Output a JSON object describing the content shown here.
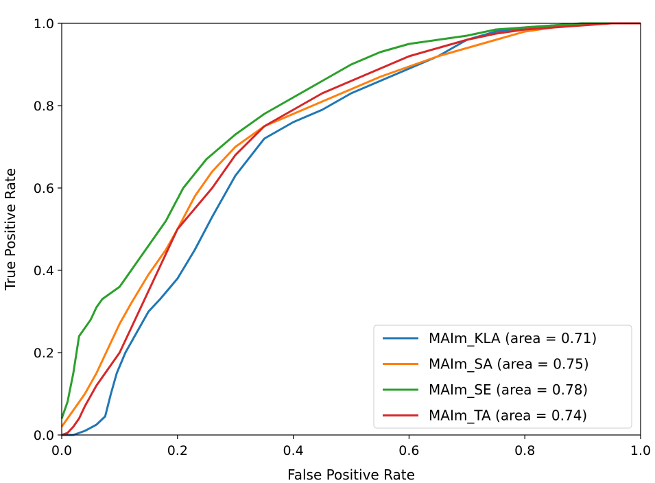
{
  "chart_data": {
    "type": "line",
    "title": "",
    "xlabel": "False Positive Rate",
    "ylabel": "True Positive Rate",
    "xlim": [
      0.0,
      1.0
    ],
    "ylim": [
      0.0,
      1.0
    ],
    "xticks": [
      "0.0",
      "0.2",
      "0.4",
      "0.6",
      "0.8",
      "1.0"
    ],
    "yticks": [
      "0.0",
      "0.2",
      "0.4",
      "0.6",
      "0.8",
      "1.0"
    ],
    "grid": false,
    "legend_position": "lower-right",
    "series": [
      {
        "name": "MAIm_KLA (area = 0.71)",
        "color": "#1f77b4",
        "x": [
          0.0,
          0.02,
          0.04,
          0.06,
          0.075,
          0.085,
          0.095,
          0.11,
          0.13,
          0.15,
          0.17,
          0.2,
          0.23,
          0.26,
          0.3,
          0.35,
          0.4,
          0.45,
          0.5,
          0.55,
          0.6,
          0.65,
          0.7,
          0.75,
          0.8,
          0.85,
          0.9,
          0.95,
          1.0
        ],
        "y": [
          0.0,
          0.0,
          0.01,
          0.025,
          0.045,
          0.1,
          0.15,
          0.2,
          0.25,
          0.3,
          0.33,
          0.38,
          0.45,
          0.53,
          0.63,
          0.72,
          0.76,
          0.79,
          0.83,
          0.86,
          0.89,
          0.92,
          0.96,
          0.98,
          0.99,
          0.995,
          1.0,
          1.0,
          1.0
        ]
      },
      {
        "name": "MAIm_SA (area = 0.75)",
        "color": "#ff7f0e",
        "x": [
          0.0,
          0.01,
          0.02,
          0.04,
          0.06,
          0.08,
          0.1,
          0.12,
          0.15,
          0.18,
          0.2,
          0.23,
          0.26,
          0.3,
          0.35,
          0.4,
          0.45,
          0.5,
          0.55,
          0.6,
          0.65,
          0.7,
          0.75,
          0.8,
          0.85,
          0.9,
          0.95,
          1.0
        ],
        "y": [
          0.02,
          0.04,
          0.06,
          0.1,
          0.15,
          0.21,
          0.27,
          0.32,
          0.39,
          0.45,
          0.5,
          0.58,
          0.64,
          0.7,
          0.75,
          0.78,
          0.81,
          0.84,
          0.87,
          0.895,
          0.92,
          0.94,
          0.96,
          0.98,
          0.99,
          1.0,
          1.0,
          1.0
        ]
      },
      {
        "name": "MAIm_SE (area = 0.78)",
        "color": "#2ca02c",
        "x": [
          0.0,
          0.01,
          0.02,
          0.03,
          0.04,
          0.05,
          0.06,
          0.07,
          0.08,
          0.1,
          0.12,
          0.15,
          0.18,
          0.21,
          0.25,
          0.3,
          0.35,
          0.4,
          0.45,
          0.5,
          0.55,
          0.6,
          0.65,
          0.7,
          0.75,
          0.8,
          0.85,
          0.9,
          0.95,
          1.0
        ],
        "y": [
          0.04,
          0.08,
          0.15,
          0.24,
          0.26,
          0.28,
          0.31,
          0.33,
          0.34,
          0.36,
          0.4,
          0.46,
          0.52,
          0.6,
          0.67,
          0.73,
          0.78,
          0.82,
          0.86,
          0.9,
          0.93,
          0.95,
          0.96,
          0.97,
          0.985,
          0.99,
          0.995,
          1.0,
          1.0,
          1.0
        ]
      },
      {
        "name": "MAIm_TA (area = 0.74)",
        "color": "#d62728",
        "x": [
          0.0,
          0.01,
          0.02,
          0.03,
          0.04,
          0.06,
          0.08,
          0.1,
          0.12,
          0.15,
          0.18,
          0.2,
          0.23,
          0.26,
          0.3,
          0.35,
          0.4,
          0.45,
          0.5,
          0.55,
          0.6,
          0.65,
          0.7,
          0.75,
          0.8,
          0.85,
          0.9,
          0.95,
          1.0
        ],
        "y": [
          0.0,
          0.005,
          0.02,
          0.04,
          0.07,
          0.12,
          0.16,
          0.2,
          0.26,
          0.35,
          0.44,
          0.5,
          0.55,
          0.6,
          0.68,
          0.75,
          0.79,
          0.83,
          0.86,
          0.89,
          0.92,
          0.94,
          0.96,
          0.975,
          0.985,
          0.99,
          0.995,
          1.0,
          1.0
        ]
      }
    ]
  }
}
